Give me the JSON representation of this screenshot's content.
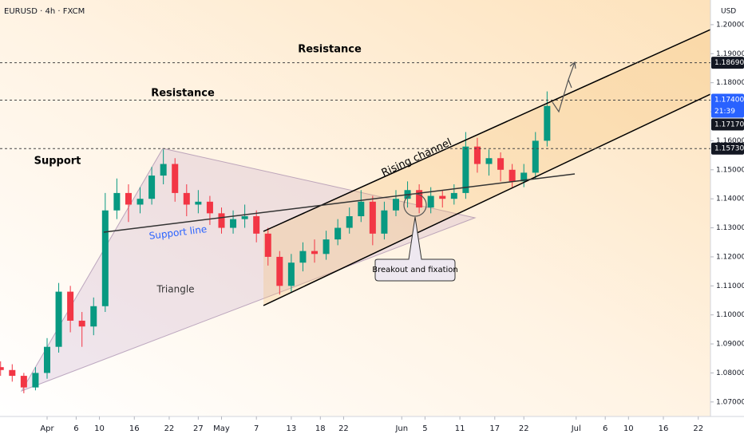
{
  "chart_data": {
    "type": "candlestick",
    "title": "EURUSD · 4h · FXCM",
    "y_axis_label": "USD",
    "x": [
      -7,
      -5,
      -3,
      -1,
      1,
      3,
      5,
      7,
      9,
      11,
      13,
      15,
      17,
      19,
      21,
      23,
      25,
      27,
      29,
      31,
      33,
      35,
      37,
      39,
      41,
      43,
      45,
      47,
      49,
      51,
      53,
      55,
      57,
      59,
      61,
      63,
      65,
      67,
      69,
      71,
      73,
      75,
      77,
      79,
      81,
      83,
      85,
      87
    ],
    "open": [
      1.082,
      1.081,
      1.079,
      1.075,
      1.08,
      1.089,
      1.108,
      1.098,
      1.096,
      1.103,
      1.136,
      1.142,
      1.138,
      1.14,
      1.148,
      1.152,
      1.142,
      1.138,
      1.139,
      1.135,
      1.13,
      1.133,
      1.134,
      1.128,
      1.12,
      1.11,
      1.118,
      1.122,
      1.121,
      1.126,
      1.13,
      1.134,
      1.139,
      1.128,
      1.136,
      1.14,
      1.143,
      1.137,
      1.141,
      1.14,
      1.142,
      1.158,
      1.152,
      1.154,
      1.15,
      1.146,
      1.149,
      1.16
    ],
    "high": [
      1.084,
      1.083,
      1.08,
      1.082,
      1.092,
      1.111,
      1.11,
      1.101,
      1.106,
      1.142,
      1.147,
      1.145,
      1.144,
      1.151,
      1.157,
      1.154,
      1.145,
      1.143,
      1.141,
      1.137,
      1.136,
      1.138,
      1.136,
      1.13,
      1.122,
      1.121,
      1.125,
      1.126,
      1.129,
      1.133,
      1.137,
      1.143,
      1.141,
      1.139,
      1.143,
      1.146,
      1.145,
      1.144,
      1.143,
      1.145,
      1.163,
      1.161,
      1.157,
      1.156,
      1.152,
      1.152,
      1.163,
      1.177
    ],
    "low": [
      1.079,
      1.077,
      1.073,
      1.074,
      1.078,
      1.087,
      1.094,
      1.089,
      1.093,
      1.101,
      1.133,
      1.132,
      1.135,
      1.138,
      1.145,
      1.139,
      1.134,
      1.135,
      1.131,
      1.128,
      1.128,
      1.13,
      1.125,
      1.117,
      1.107,
      1.108,
      1.115,
      1.118,
      1.119,
      1.124,
      1.128,
      1.132,
      1.124,
      1.126,
      1.134,
      1.137,
      1.135,
      1.135,
      1.137,
      1.138,
      1.14,
      1.149,
      1.148,
      1.146,
      1.144,
      1.144,
      1.147,
      1.158
    ],
    "close": [
      1.081,
      1.079,
      1.075,
      1.08,
      1.089,
      1.108,
      1.098,
      1.096,
      1.103,
      1.136,
      1.142,
      1.138,
      1.14,
      1.148,
      1.152,
      1.142,
      1.138,
      1.139,
      1.135,
      1.13,
      1.133,
      1.134,
      1.128,
      1.12,
      1.11,
      1.118,
      1.122,
      1.121,
      1.126,
      1.13,
      1.134,
      1.139,
      1.128,
      1.136,
      1.14,
      1.143,
      1.137,
      1.141,
      1.14,
      1.142,
      1.158,
      1.152,
      1.154,
      1.15,
      1.146,
      1.149,
      1.16,
      1.172
    ],
    "up_color": "#089981",
    "down_color": "#f23645",
    "xlim": [
      -7.1,
      115.1
    ],
    "ylim": [
      1.065,
      1.2085
    ],
    "xticks": [
      {
        "value": 1,
        "label": "Apr"
      },
      6,
      10,
      16,
      22,
      27,
      {
        "value": 31,
        "label": "May"
      },
      {
        "value": 37,
        "label": "7"
      },
      {
        "value": 43,
        "label": "13"
      },
      {
        "value": 48,
        "label": "18"
      },
      {
        "value": 52,
        "label": "22"
      },
      {
        "value": 62,
        "label": "Jun"
      },
      {
        "value": 66,
        "label": "5"
      },
      {
        "value": 72,
        "label": "11"
      },
      {
        "value": 78,
        "label": "17"
      },
      {
        "value": 83,
        "label": "22"
      },
      {
        "value": 92,
        "label": "Jul"
      },
      {
        "value": 97,
        "label": "6"
      },
      {
        "value": 101,
        "label": "10"
      },
      {
        "value": 107,
        "label": "16"
      },
      {
        "value": 113,
        "label": "22"
      }
    ],
    "yticks": [
      {
        "value": 1.07,
        "label": "1.07000"
      },
      {
        "value": 1.08,
        "label": "1.08000"
      },
      {
        "value": 1.09,
        "label": "1.09000"
      },
      {
        "value": 1.1,
        "label": "1.10000"
      },
      {
        "value": 1.11,
        "label": "1.11000"
      },
      {
        "value": 1.12,
        "label": "1.12000"
      },
      {
        "value": 1.13,
        "label": "1.13000"
      },
      {
        "value": 1.14,
        "label": "1.14000"
      },
      {
        "value": 1.15,
        "label": "1.15000"
      },
      {
        "value": 1.16,
        "label": "1.16000"
      },
      {
        "value": 1.17,
        "label": "1.17000"
      },
      {
        "value": 1.18,
        "label": "1.18000"
      },
      {
        "value": 1.19,
        "label": "1.19000"
      },
      {
        "value": 1.2,
        "label": "1.20000"
      }
    ],
    "price_labels": [
      {
        "value": 1.1869,
        "label": "1.18690",
        "color": "#131722",
        "dashed": true
      },
      {
        "value": 1.174,
        "label": "1.17400",
        "countdown": "21:39",
        "color": "#2962ff",
        "dashed": true
      },
      {
        "value": 1.1717,
        "label": "1.17170",
        "color": "#131722",
        "dashed": false
      },
      {
        "value": 1.1573,
        "label": "1.15730",
        "color": "#131722",
        "dashed": true
      }
    ],
    "annotations": {
      "resistance_upper": "Resistance",
      "resistance_lower": "Resistance",
      "support": "Support",
      "support_line": "Support line",
      "triangle": "Triangle",
      "rising_channel": "Rising channel",
      "breakout": "Breakout and fixation"
    }
  }
}
